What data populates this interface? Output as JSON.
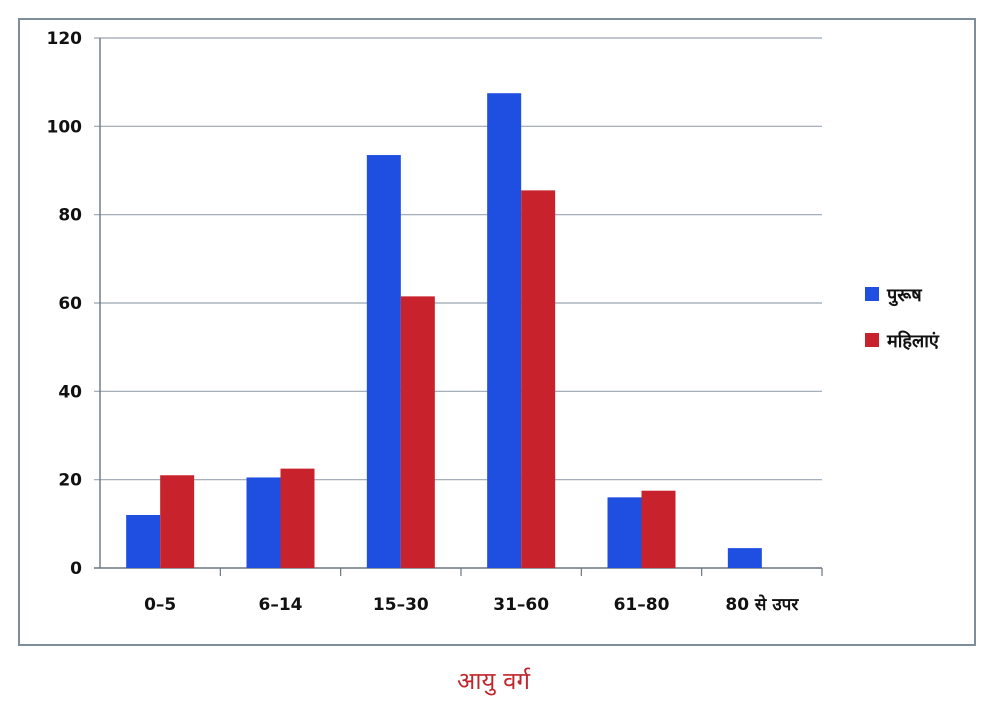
{
  "colors": {
    "male": "#1f4fe0",
    "female": "#c8232c",
    "grid": "#9aa4b0",
    "axis_title": "#c0272d"
  },
  "chart_data": {
    "type": "bar",
    "title": "",
    "xlabel": "आयु वर्ग",
    "ylabel": "",
    "categories": [
      "0–5",
      "6–14",
      "15–30",
      "31–60",
      "61–80",
      "80 से उपर"
    ],
    "series": [
      {
        "name": "पुरूष",
        "values": [
          12,
          20.5,
          93.5,
          107.5,
          16,
          4.5
        ]
      },
      {
        "name": "महिलाएं",
        "values": [
          21,
          22.5,
          61.5,
          85.5,
          17.5,
          0
        ]
      }
    ],
    "ylim": [
      0,
      120
    ],
    "yticks": [
      0,
      20,
      40,
      60,
      80,
      100,
      120
    ],
    "grid": true,
    "legend_position": "right"
  }
}
